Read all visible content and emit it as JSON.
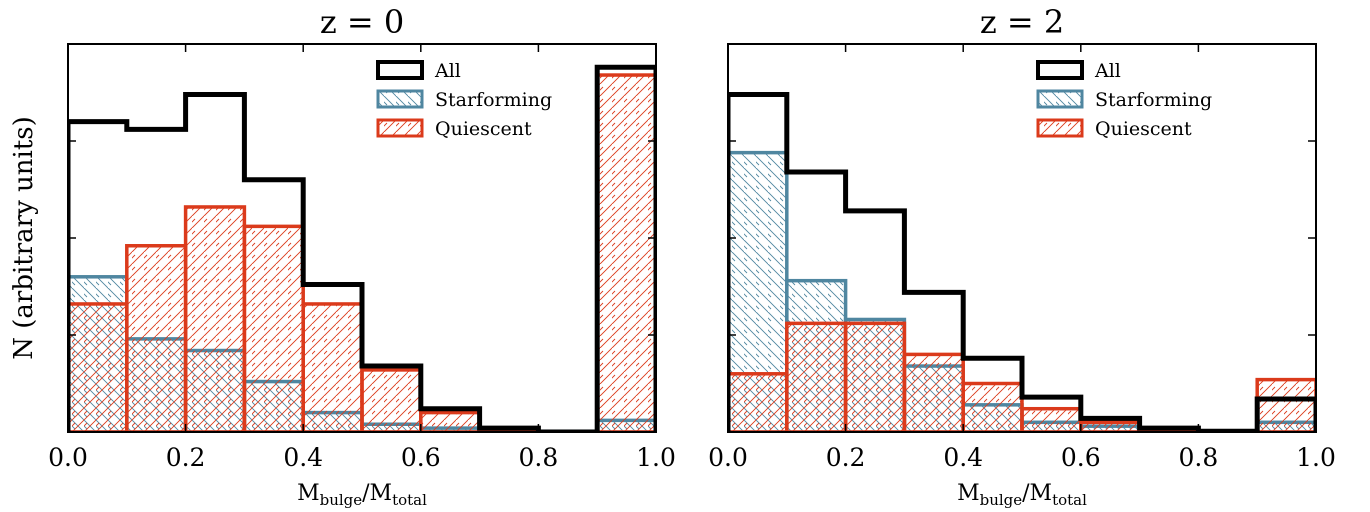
{
  "figure": {
    "ylabel": "N (arbitrary units)"
  },
  "colors": {
    "all": "#000000",
    "starforming": "#4f86a0",
    "quiescent": "#db3a1b"
  },
  "chart_data": [
    {
      "type": "bar",
      "title": "z = 0",
      "xlabel_main": "M",
      "xlabel_sub1": "bulge",
      "xlabel_slash": "/M",
      "xlabel_sub2": "total",
      "ylabel": "N (arbitrary units)",
      "xlim": [
        0.0,
        1.0
      ],
      "ylim": [
        0,
        100
      ],
      "xticks": [
        "0.0",
        "0.2",
        "0.4",
        "0.6",
        "0.8",
        "1.0"
      ],
      "yticks_unlabeled": [
        0,
        25,
        50,
        75,
        100
      ],
      "bin_edges": [
        0.0,
        0.1,
        0.2,
        0.3,
        0.4,
        0.5,
        0.6,
        0.7,
        0.8,
        0.9,
        1.0
      ],
      "legend_position": "top-right",
      "series": [
        {
          "name": "All",
          "key": "all",
          "values": [
            80,
            78,
            87,
            65,
            38,
            17,
            6,
            1,
            0,
            94
          ]
        },
        {
          "name": "Starforming",
          "key": "starforming",
          "values": [
            40,
            24,
            21,
            13,
            5,
            2,
            1,
            0.4,
            0.2,
            3
          ]
        },
        {
          "name": "Quiescent",
          "key": "quiescent",
          "values": [
            33,
            48,
            58,
            53,
            33,
            16,
            5,
            0.7,
            0,
            92
          ]
        }
      ]
    },
    {
      "type": "bar",
      "title": "z = 2",
      "xlabel_main": "M",
      "xlabel_sub1": "bulge",
      "xlabel_slash": "/M",
      "xlabel_sub2": "total",
      "xlim": [
        0.0,
        1.0
      ],
      "ylim": [
        0,
        100
      ],
      "xticks": [
        "0.0",
        "0.2",
        "0.4",
        "0.6",
        "0.8",
        "1.0"
      ],
      "yticks_unlabeled": [
        0,
        25,
        50,
        75,
        100
      ],
      "bin_edges": [
        0.0,
        0.1,
        0.2,
        0.3,
        0.4,
        0.5,
        0.6,
        0.7,
        0.8,
        0.9,
        1.0
      ],
      "legend_position": "top-right",
      "series": [
        {
          "name": "All",
          "key": "all",
          "values": [
            87,
            67,
            57,
            36,
            19,
            9,
            3.5,
            1,
            0.2,
            8.5
          ]
        },
        {
          "name": "Starforming",
          "key": "starforming",
          "values": [
            72,
            39,
            29,
            17,
            7,
            2.5,
            1.5,
            0.5,
            0.2,
            2.5
          ]
        },
        {
          "name": "Quiescent",
          "key": "quiescent",
          "values": [
            15,
            28,
            28,
            20,
            12.5,
            6,
            2.5,
            0.6,
            0,
            13.5
          ]
        }
      ]
    }
  ]
}
